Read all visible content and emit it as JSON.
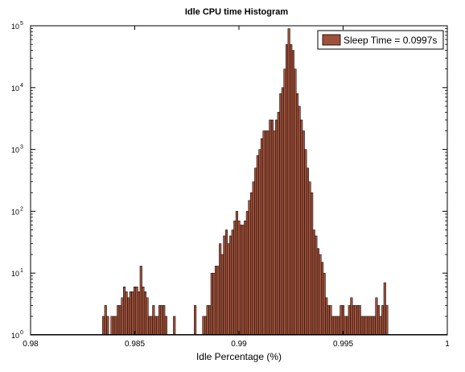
{
  "chart_data": {
    "type": "bar",
    "title": "Idle CPU time Histogram",
    "xlabel": "Idle Percentage (%)",
    "ylabel": "",
    "xlim": [
      0.98,
      1.0
    ],
    "ylim": [
      1,
      100000
    ],
    "yscale": "log",
    "grid": false,
    "legend_position": "top-right",
    "bar_color": "#A0513A",
    "bar_edge_color": "#000000",
    "bin_width": 0.0001,
    "x_ticks": [
      {
        "value": 0.98,
        "label": "0.98"
      },
      {
        "value": 0.985,
        "label": "0.985"
      },
      {
        "value": 0.99,
        "label": "0.99"
      },
      {
        "value": 0.995,
        "label": "0.995"
      },
      {
        "value": 1.0,
        "label": "1"
      }
    ],
    "y_ticks": [
      {
        "value": 1,
        "base": "10",
        "exp": "0"
      },
      {
        "value": 10,
        "base": "10",
        "exp": "1"
      },
      {
        "value": 100,
        "base": "10",
        "exp": "2"
      },
      {
        "value": 1000,
        "base": "10",
        "exp": "3"
      },
      {
        "value": 10000,
        "base": "10",
        "exp": "4"
      },
      {
        "value": 100000,
        "base": "10",
        "exp": "5"
      }
    ],
    "series": [
      {
        "name": "Sleep Time = 0.0997s",
        "x": [
          0.9835,
          0.9836,
          0.9837,
          0.9839,
          0.984,
          0.9841,
          0.9842,
          0.9843,
          0.9844,
          0.9845,
          0.9846,
          0.9847,
          0.9848,
          0.9849,
          0.985,
          0.9851,
          0.9852,
          0.9853,
          0.9854,
          0.9855,
          0.9856,
          0.9857,
          0.9858,
          0.9859,
          0.986,
          0.9861,
          0.9862,
          0.9863,
          0.9864,
          0.9865,
          0.9869,
          0.9879,
          0.9883,
          0.9884,
          0.9885,
          0.9886,
          0.9887,
          0.9888,
          0.9889,
          0.989,
          0.9891,
          0.9892,
          0.9893,
          0.9894,
          0.9895,
          0.9896,
          0.9897,
          0.9898,
          0.9899,
          0.99,
          0.9901,
          0.9902,
          0.9903,
          0.9904,
          0.9905,
          0.9906,
          0.9907,
          0.9908,
          0.9909,
          0.991,
          0.9911,
          0.9912,
          0.9913,
          0.9914,
          0.9915,
          0.9916,
          0.9917,
          0.9918,
          0.9919,
          0.992,
          0.9921,
          0.9922,
          0.9923,
          0.9924,
          0.9925,
          0.9926,
          0.9927,
          0.9928,
          0.9929,
          0.993,
          0.9931,
          0.9932,
          0.9933,
          0.9934,
          0.9935,
          0.9936,
          0.9937,
          0.9938,
          0.9939,
          0.994,
          0.9941,
          0.9942,
          0.9943,
          0.9944,
          0.9945,
          0.9946,
          0.9947,
          0.9948,
          0.9949,
          0.995,
          0.9951,
          0.9952,
          0.9953,
          0.9954,
          0.9955,
          0.9956,
          0.9957,
          0.9958,
          0.9959,
          0.996,
          0.9961,
          0.9962,
          0.9963,
          0.9964,
          0.9965,
          0.9966,
          0.9967,
          0.9968,
          0.9969,
          0.997,
          0.9971
        ],
        "values": [
          2,
          3,
          2,
          2,
          2,
          2,
          3,
          3,
          4,
          6,
          5,
          4,
          5,
          5,
          6,
          6,
          5,
          13,
          6,
          5,
          4,
          2,
          2,
          3,
          2,
          2,
          3,
          3,
          3,
          2,
          2,
          3,
          2,
          2,
          3,
          3,
          10,
          10,
          13,
          13,
          30,
          20,
          40,
          50,
          30,
          40,
          50,
          70,
          100,
          70,
          60,
          60,
          70,
          100,
          150,
          200,
          300,
          500,
          800,
          1000,
          1500,
          2000,
          2000,
          2000,
          3000,
          3000,
          2000,
          3000,
          4000,
          8000,
          10000,
          20000,
          50000,
          90000,
          50000,
          40000,
          20000,
          8000,
          5000,
          3000,
          2000,
          1000,
          500,
          300,
          200,
          50,
          40,
          25,
          20,
          15,
          10,
          4,
          3,
          3,
          2,
          2,
          2,
          2,
          3,
          3,
          2,
          2,
          3,
          4,
          3,
          3,
          3,
          3,
          2,
          2,
          2,
          2,
          2,
          2,
          2,
          4,
          3,
          2,
          3,
          7,
          3
        ]
      }
    ]
  }
}
